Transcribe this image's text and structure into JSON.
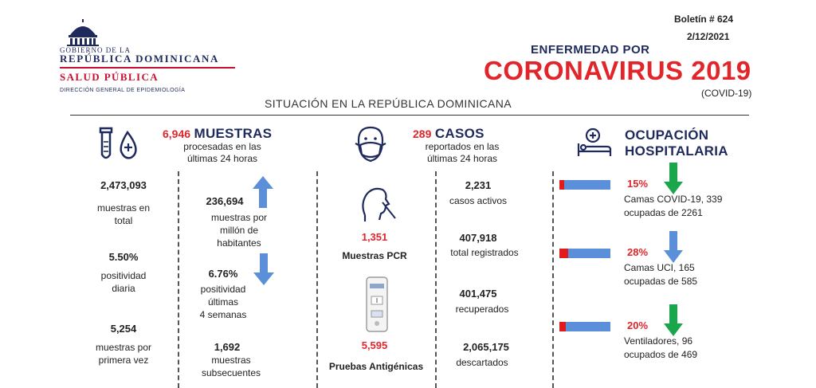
{
  "header": {
    "gov_line1": "GOBIERNO DE LA",
    "gov_line2": "REPÚBLICA DOMINICANA",
    "salud": "SALUD PÚBLICA",
    "direccion": "DIRECCIÓN GENERAL DE EPIDEMIOLOGÍA",
    "boletin": "Boletín # 624",
    "fecha": "2/12/2021",
    "enfermedad": "ENFERMEDAD POR",
    "coronavirus": "CORONAVIRUS 2019",
    "covid": "(COVID-19)",
    "situacion": "SITUACIÓN EN LA REPÚBLICA DOMINICANA"
  },
  "muestras": {
    "head_num": "6,946",
    "head_title": "MUESTRAS",
    "head_sub1": "procesadas en las",
    "head_sub2": "últimas 24 horas",
    "total_val": "2,473,093",
    "total_lbl1": "muestras en",
    "total_lbl2": "total",
    "positividad_val": "5.50%",
    "positividad_lbl1": "positividad",
    "positividad_lbl2": "diaria",
    "primera_val": "5,254",
    "primera_lbl1": "muestras por",
    "primera_lbl2": "primera vez",
    "millon_val": "236,694",
    "millon_lbl1": "muestras por",
    "millon_lbl2": "millón de",
    "millon_lbl3": "habitantes",
    "pos4_val": "6.76%",
    "pos4_lbl1": "positividad",
    "pos4_lbl2": "últimas",
    "pos4_lbl3": "4 semanas",
    "subsec_val": "1,692",
    "subsec_lbl1": "muestras",
    "subsec_lbl2": "subsecuentes"
  },
  "casos": {
    "head_num": "289",
    "head_title": "CASOS",
    "head_sub1": "reportados en las",
    "head_sub2": "últimas 24 horas",
    "pcr_val": "1,351",
    "pcr_lbl": "Muestras PCR",
    "antig_val": "5,595",
    "antig_lbl": "Pruebas Antigénicas",
    "activos_val": "2,231",
    "activos_lbl": "casos activos",
    "registrados_val": "407,918",
    "registrados_lbl": "total registrados",
    "recuperados_val": "401,475",
    "recuperados_lbl": "recuperados",
    "descartados_val": "2,065,175",
    "descartados_lbl": "descartados"
  },
  "ocupacion": {
    "title1": "OCUPACIÓN",
    "title2": "HOSPITALARIA",
    "items": [
      {
        "pct": "15%",
        "fill": 0.15,
        "line1": "Camas COVID-19,  339",
        "line2": "ocupadas de 2261",
        "arrow": "#1aa64a"
      },
      {
        "pct": "28%",
        "fill": 0.28,
        "line1": "Camas UCI,  165",
        "line2": "ocupadas de 585",
        "arrow": "#5b8fd9"
      },
      {
        "pct": "20%",
        "fill": 0.2,
        "line1": "Ventiladores, 96",
        "line2": "ocupados de 469",
        "arrow": "#1aa64a"
      }
    ]
  },
  "colors": {
    "accent_red": "#e0262b",
    "navy": "#1f2a5c",
    "bar_blue": "#5b8fd9",
    "arrow_green": "#1aa64a"
  }
}
